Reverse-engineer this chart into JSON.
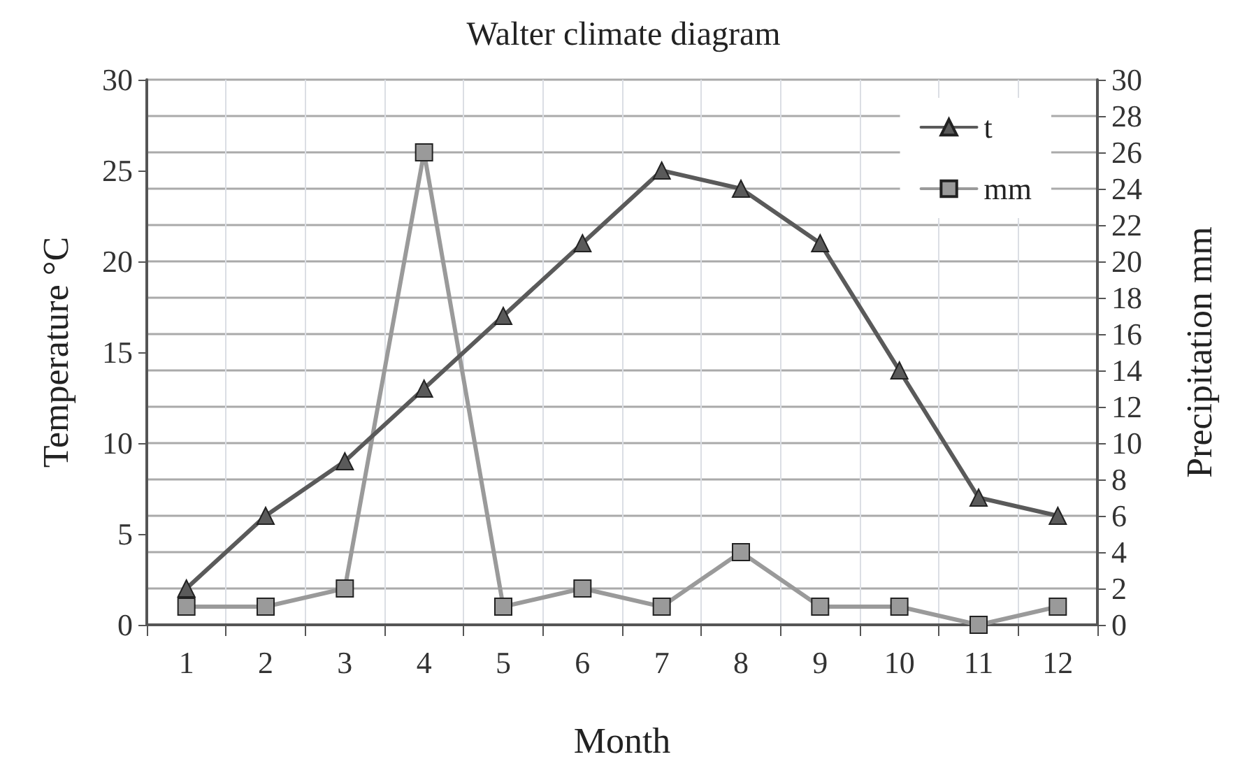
{
  "chart_data": {
    "type": "line",
    "title": "Walter climate diagram",
    "xlabel": "Month",
    "ylabel": "Temperature °C",
    "y2label": "Precipitation mm",
    "categories": [
      "1",
      "2",
      "3",
      "4",
      "5",
      "6",
      "7",
      "8",
      "9",
      "10",
      "11",
      "12"
    ],
    "series": [
      {
        "name": "t",
        "color": "#5a5a5a",
        "marker": "triangle",
        "values": [
          2,
          6,
          9,
          13,
          17,
          21,
          25,
          24,
          21,
          14,
          7,
          6
        ]
      },
      {
        "name": "mm",
        "color": "#9a9a9a",
        "marker": "square",
        "axis": "y2",
        "values": [
          1,
          1,
          2,
          26,
          1,
          2,
          1,
          4,
          1,
          1,
          0,
          1
        ]
      }
    ],
    "ylim": [
      0,
      30
    ],
    "yticks": [
      0,
      5,
      10,
      15,
      20,
      25,
      30
    ],
    "y2lim": [
      0,
      30
    ],
    "y2ticks": [
      0,
      2,
      4,
      6,
      8,
      10,
      12,
      14,
      16,
      18,
      20,
      22,
      24,
      26,
      28,
      30
    ],
    "grid": true,
    "legend": "top right"
  }
}
